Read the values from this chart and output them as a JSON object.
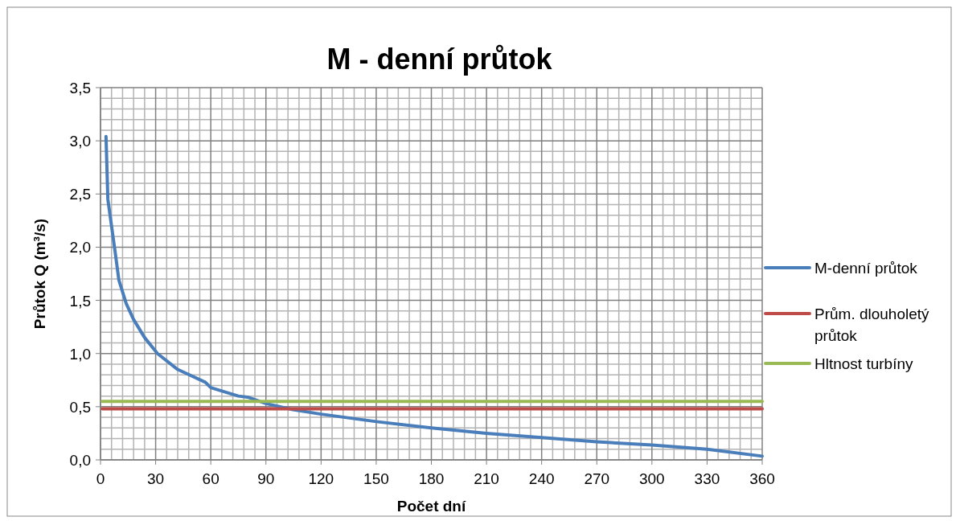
{
  "chart_data": {
    "type": "line",
    "title": "M - denní průtok",
    "xlabel": "Počet dní",
    "ylabel": "Průtok Q (m³/s)",
    "xlim": [
      0,
      360
    ],
    "xticks": [
      0,
      30,
      60,
      90,
      120,
      150,
      180,
      210,
      240,
      270,
      300,
      330,
      360
    ],
    "ylim": [
      0,
      3.5
    ],
    "yticks": [
      {
        "value": 0,
        "label": "0,0"
      },
      {
        "value": 0.5,
        "label": "0,5"
      },
      {
        "value": 1,
        "label": "1,0"
      },
      {
        "value": 1.5,
        "label": "1,5"
      },
      {
        "value": 2,
        "label": "2,0"
      },
      {
        "value": 2.5,
        "label": "2,5"
      },
      {
        "value": 3,
        "label": "3,0"
      },
      {
        "value": 3.5,
        "label": "3,5"
      }
    ],
    "grid": true,
    "legend": "right",
    "marker": "none",
    "line_style": "solid",
    "series": [
      {
        "name": "M-denní průtok",
        "color": "#4a7ebb",
        "x": [
          3,
          4,
          6,
          8,
          10,
          14,
          18,
          24,
          31,
          42,
          57,
          60,
          75,
          80,
          90,
          104,
          120,
          150,
          180,
          210,
          240,
          270,
          300,
          330,
          360
        ],
        "values": [
          3.04,
          2.45,
          2.2,
          1.95,
          1.69,
          1.47,
          1.32,
          1.15,
          1.0,
          0.85,
          0.73,
          0.68,
          0.6,
          0.59,
          0.53,
          0.475,
          0.43,
          0.36,
          0.3,
          0.25,
          0.21,
          0.17,
          0.14,
          0.1,
          0.035
        ]
      },
      {
        "name": "Prům. dlouholetý průtok",
        "color": "#be4b48",
        "x": [
          1,
          360
        ],
        "values": [
          0.48,
          0.48
        ]
      },
      {
        "name": "Hltnost turbíny",
        "color": "#98b954",
        "x": [
          1,
          360
        ],
        "values": [
          0.55,
          0.55
        ]
      }
    ]
  }
}
